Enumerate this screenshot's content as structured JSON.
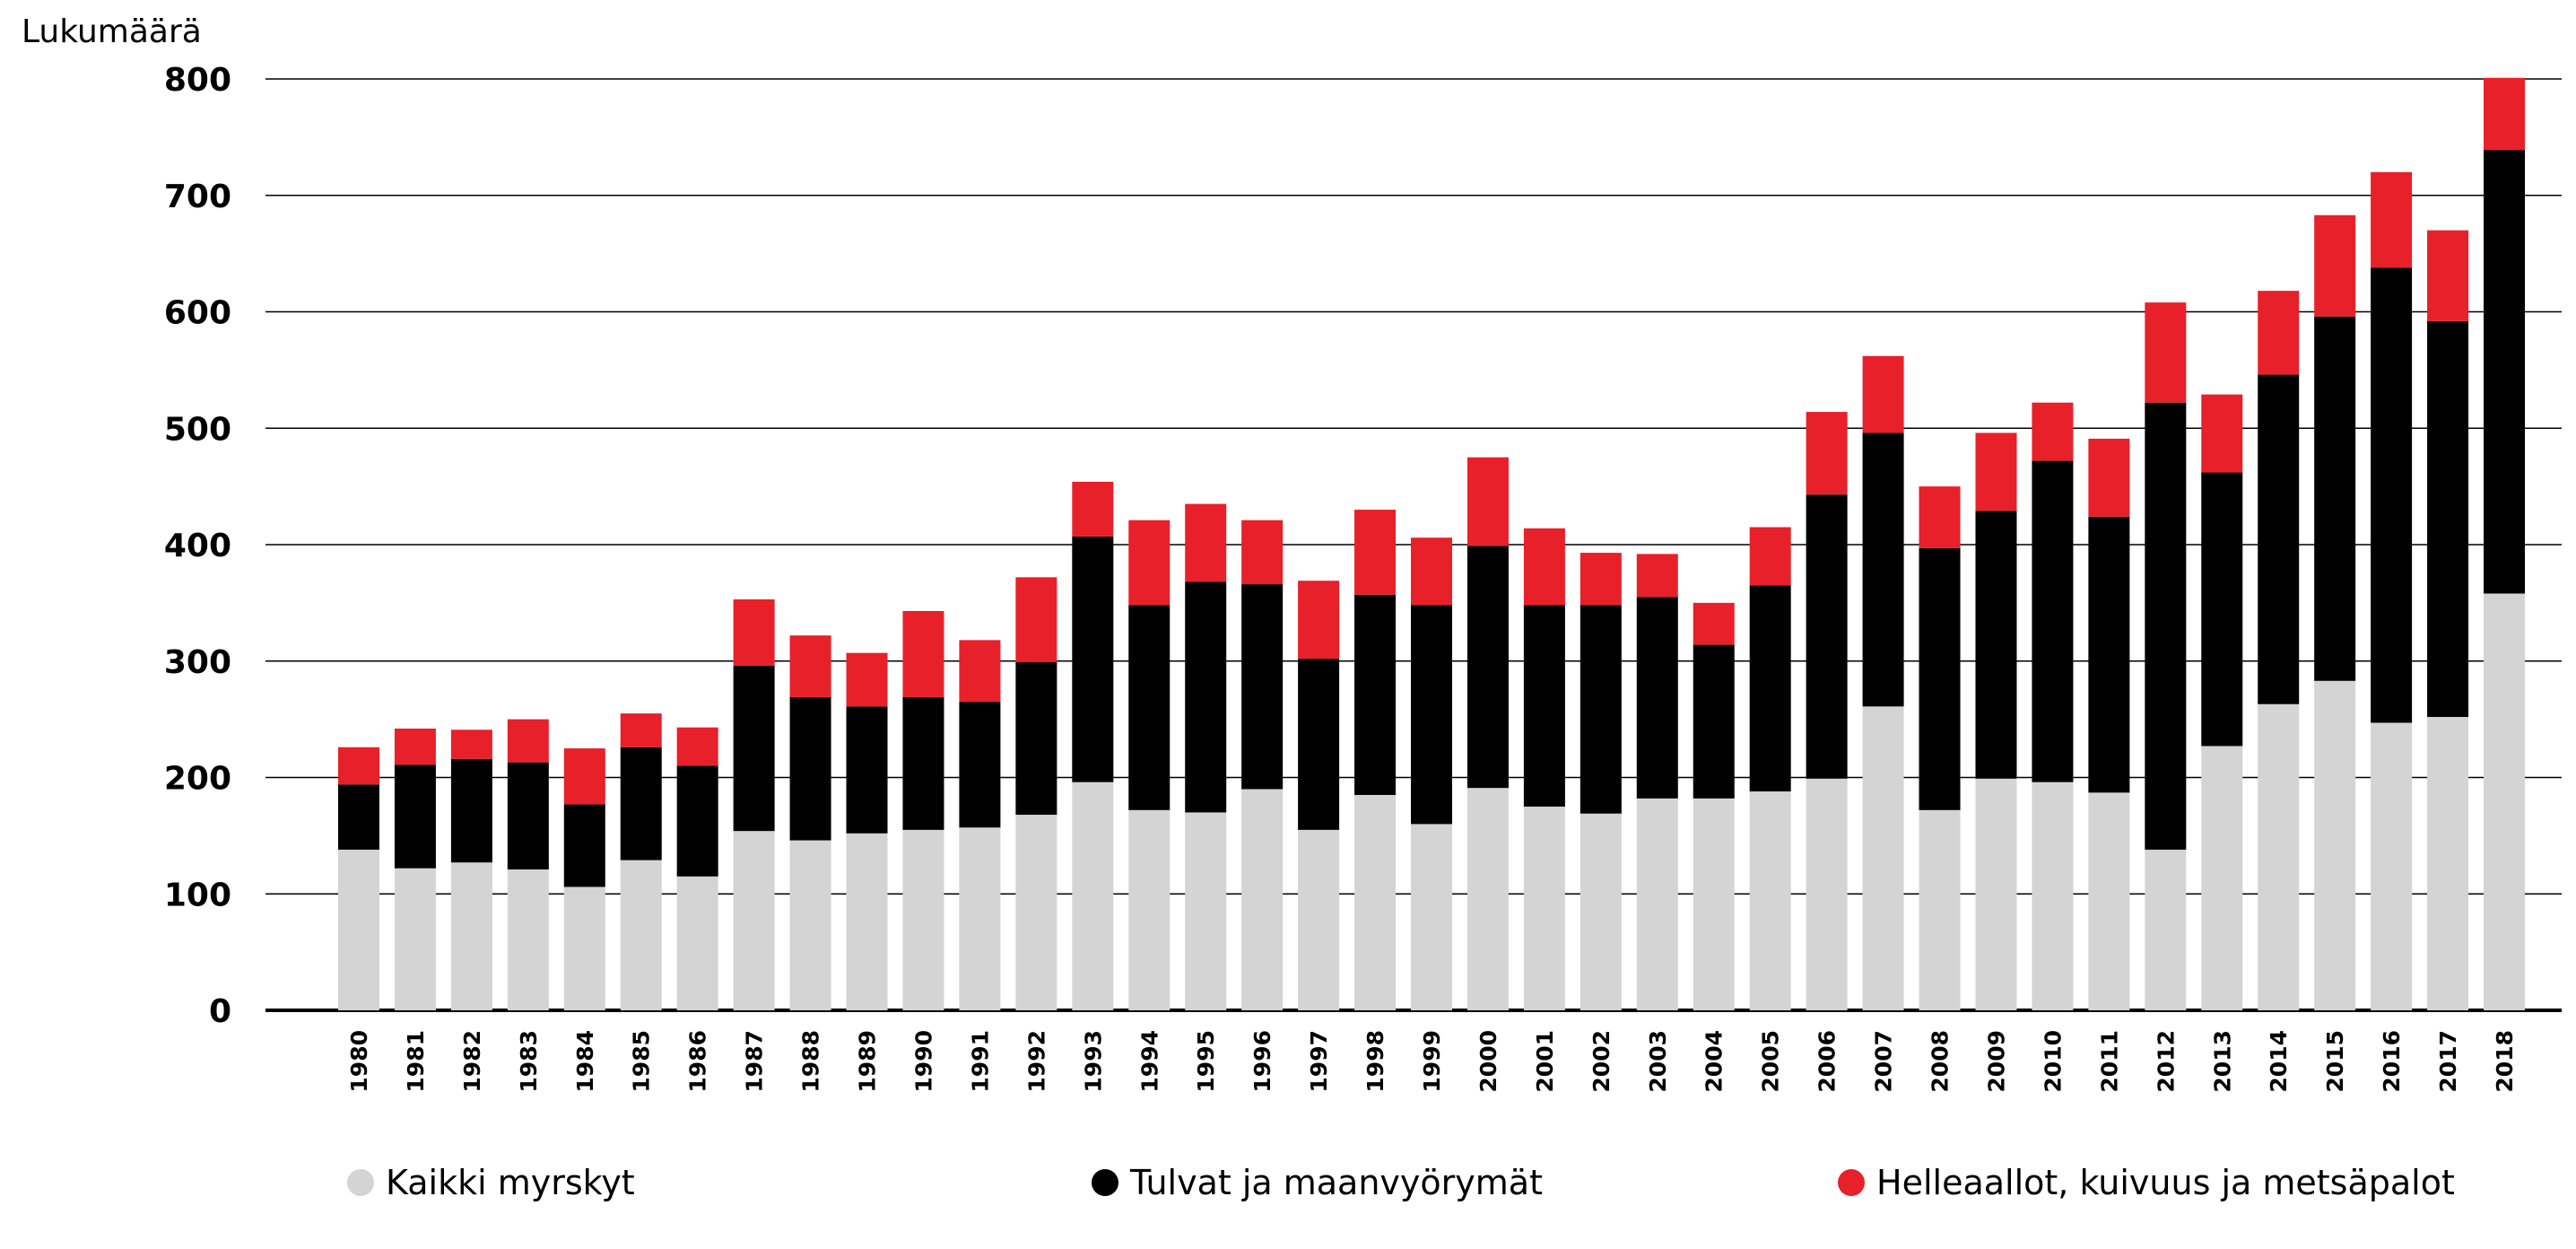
{
  "chart_data": {
    "type": "bar",
    "stacked": true,
    "ylabel": "Lukumäärä",
    "ylim": [
      0,
      800
    ],
    "yticks": [
      0,
      100,
      200,
      300,
      400,
      500,
      600,
      700,
      800
    ],
    "grid": true,
    "legend_position": "bottom",
    "categories": [
      "1980",
      "1981",
      "1982",
      "1983",
      "1984",
      "1985",
      "1986",
      "1987",
      "1988",
      "1989",
      "1990",
      "1991",
      "1992",
      "1993",
      "1994",
      "1995",
      "1996",
      "1997",
      "1998",
      "1999",
      "2000",
      "2001",
      "2002",
      "2003",
      "2004",
      "2005",
      "2006",
      "2007",
      "2008",
      "2009",
      "2010",
      "2011",
      "2012",
      "2013",
      "2014",
      "2015",
      "2016",
      "2017",
      "2018"
    ],
    "series": [
      {
        "name": "Kaikki myrskyt",
        "color": "#d4d4d4",
        "values": [
          138,
          122,
          127,
          121,
          106,
          129,
          115,
          154,
          146,
          152,
          155,
          157,
          168,
          196,
          172,
          170,
          190,
          155,
          185,
          160,
          191,
          175,
          169,
          182,
          182,
          188,
          199,
          261,
          172,
          199,
          196,
          187,
          138,
          227,
          263,
          283,
          247,
          252,
          358
        ]
      },
      {
        "name": "Tulvat ja maanvyörymät",
        "color": "#000000",
        "values": [
          56,
          89,
          89,
          92,
          71,
          97,
          95,
          142,
          123,
          109,
          114,
          108,
          131,
          211,
          176,
          198,
          176,
          147,
          172,
          188,
          208,
          173,
          179,
          173,
          132,
          177,
          244,
          235,
          225,
          230,
          276,
          237,
          384,
          235,
          283,
          313,
          391,
          340,
          381
        ]
      },
      {
        "name": "Helleaallot, kuivuus ja metsäpalot",
        "color": "#e8202a",
        "values": [
          32,
          31,
          25,
          37,
          48,
          29,
          33,
          57,
          53,
          46,
          74,
          53,
          73,
          47,
          73,
          67,
          55,
          67,
          73,
          58,
          76,
          66,
          45,
          37,
          36,
          50,
          71,
          66,
          53,
          67,
          50,
          67,
          86,
          67,
          72,
          87,
          82,
          78,
          62
        ]
      }
    ]
  }
}
